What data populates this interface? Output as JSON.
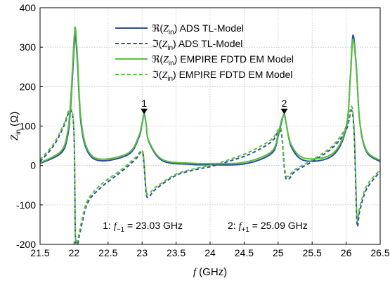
{
  "chart_data": {
    "type": "line",
    "xlabel": {
      "var": "f",
      "unit": " (GHz)"
    },
    "ylabel": {
      "var": "Z",
      "sub": "in",
      "unit": " (Ω)"
    },
    "xlim": [
      21.5,
      26.5
    ],
    "ylim": [
      -200,
      400
    ],
    "xticks": [
      "21.5",
      "22",
      "22.5",
      "23",
      "23.5",
      "24",
      "24.5",
      "25",
      "25.5",
      "26",
      "26.5"
    ],
    "yticks": [
      "-200",
      "-100",
      "0",
      "100",
      "200",
      "300",
      "400"
    ],
    "grid": true,
    "legend_position": "top-center",
    "colors": {
      "ads": "#2c4f9e",
      "empire": "#5abf3c"
    },
    "series": [
      {
        "name": "ℜ(Z_in) ADS TL-Model",
        "sym": "ℜ",
        "rest": " ADS TL-Model",
        "part": "re",
        "model": "ads",
        "color": "#2c4f9e",
        "dash": false,
        "x": [
          21.5,
          21.8,
          21.9,
          21.95,
          22.0,
          22.02,
          22.05,
          22.1,
          22.2,
          22.4,
          22.8,
          22.95,
          23.0,
          23.03,
          23.06,
          23.1,
          23.3,
          23.7,
          24.0,
          24.5,
          24.9,
          25.0,
          25.05,
          25.09,
          25.12,
          25.2,
          25.4,
          25.8,
          26.0,
          26.06,
          26.1,
          26.15,
          26.2,
          26.3,
          26.5
        ],
        "y": [
          5,
          30,
          70,
          150,
          300,
          330,
          260,
          110,
          35,
          12,
          28,
          70,
          105,
          130,
          105,
          60,
          12,
          3,
          2,
          4,
          30,
          75,
          110,
          130,
          105,
          45,
          12,
          25,
          95,
          220,
          330,
          250,
          110,
          35,
          10
        ]
      },
      {
        "name": "ℑ(Z_in) ADS TL-Model",
        "sym": "ℑ",
        "rest": " ADS TL-Model",
        "part": "im",
        "model": "ads",
        "color": "#2c4f9e",
        "dash": true,
        "x": [
          21.5,
          21.7,
          21.85,
          21.95,
          22.0,
          22.02,
          22.05,
          22.1,
          22.2,
          22.4,
          22.7,
          22.9,
          23.0,
          23.03,
          23.06,
          23.1,
          23.2,
          23.5,
          23.8,
          24.0,
          24.3,
          24.6,
          24.9,
          25.0,
          25.05,
          25.1,
          25.15,
          25.25,
          25.5,
          25.8,
          26.0,
          26.08,
          26.12,
          26.16,
          26.2,
          26.3,
          26.5
        ],
        "y": [
          10,
          50,
          100,
          140,
          75,
          -180,
          -200,
          -160,
          -95,
          -55,
          -15,
          15,
          35,
          0,
          -70,
          -80,
          -60,
          -25,
          -10,
          -3,
          12,
          30,
          60,
          85,
          80,
          -20,
          -35,
          -15,
          10,
          45,
          90,
          140,
          70,
          -145,
          -115,
          -60,
          -15
        ]
      },
      {
        "name": "ℜ(Z_in) EMPIRE FDTD EM Model",
        "sym": "ℜ",
        "rest": " EMPIRE FDTD EM Model",
        "part": "re",
        "model": "empire",
        "color": "#5abf3c",
        "dash": false,
        "x": [
          21.5,
          21.8,
          21.9,
          21.95,
          22.0,
          22.02,
          22.05,
          22.1,
          22.2,
          22.4,
          22.8,
          22.95,
          23.0,
          23.03,
          23.06,
          23.1,
          23.3,
          23.7,
          24.0,
          24.5,
          24.9,
          25.0,
          25.05,
          25.09,
          25.12,
          25.2,
          25.4,
          25.8,
          26.0,
          26.06,
          26.1,
          26.15,
          26.2,
          26.3,
          26.5
        ],
        "y": [
          7,
          35,
          80,
          165,
          320,
          348,
          275,
          120,
          40,
          16,
          32,
          74,
          108,
          128,
          104,
          62,
          15,
          6,
          5,
          8,
          35,
          80,
          115,
          128,
          104,
          50,
          18,
          30,
          100,
          215,
          320,
          245,
          112,
          38,
          13
        ]
      },
      {
        "name": "ℑ(Z_in) EMPIRE FDTD EM Model",
        "sym": "ℑ",
        "rest": " EMPIRE FDTD EM Model",
        "part": "im",
        "model": "empire",
        "color": "#5abf3c",
        "dash": true,
        "x": [
          21.5,
          21.7,
          21.85,
          21.95,
          22.0,
          22.02,
          22.05,
          22.1,
          22.2,
          22.4,
          22.7,
          22.9,
          23.0,
          23.03,
          23.06,
          23.1,
          23.2,
          23.5,
          23.8,
          24.0,
          24.3,
          24.6,
          24.9,
          25.0,
          25.05,
          25.1,
          25.15,
          25.25,
          25.5,
          25.8,
          26.0,
          26.08,
          26.12,
          26.16,
          26.2,
          26.3,
          26.5
        ],
        "y": [
          15,
          55,
          105,
          145,
          80,
          -170,
          -190,
          -150,
          -88,
          -48,
          -10,
          20,
          38,
          5,
          -62,
          -72,
          -55,
          -22,
          -7,
          0,
          16,
          36,
          66,
          90,
          86,
          -12,
          -28,
          -10,
          14,
          50,
          98,
          150,
          80,
          -130,
          -105,
          -52,
          -10
        ]
      }
    ],
    "markers": [
      {
        "label": "1",
        "x": 23.03,
        "y": 128
      },
      {
        "label": "2",
        "x": 25.09,
        "y": 128
      }
    ],
    "annotations": [
      {
        "prefix": "1: ",
        "var": "f",
        "sub": "−1",
        "suffix": " = 23.03 GHz",
        "x": 23.03
      },
      {
        "prefix": "2: ",
        "var": "f",
        "sub": "+1",
        "suffix": " = 25.09 GHz",
        "x": 25.09
      }
    ]
  }
}
